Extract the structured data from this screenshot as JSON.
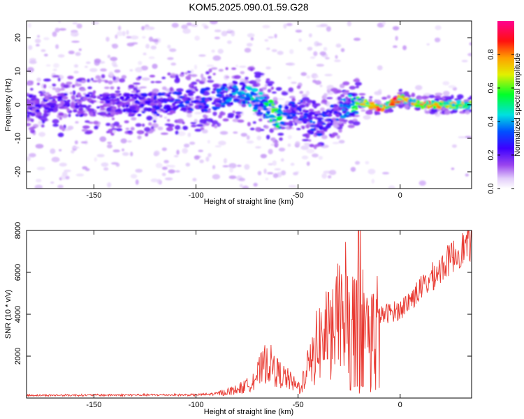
{
  "title": "KOM5.2025.090.01.59.G28",
  "chart_data": [
    {
      "type": "heatmap",
      "xlabel": "Height of straight line (km)",
      "ylabel": "Frequency (Hz)",
      "xlim": [
        -183,
        35
      ],
      "ylim": [
        -25,
        25
      ],
      "x_ticks": [
        -150,
        -100,
        -50,
        0
      ],
      "y_ticks": [
        -20,
        -10,
        0,
        10,
        20
      ],
      "colorbar": {
        "label": "Normalized spectral amplitude",
        "range": [
          0,
          1
        ],
        "ticks": [
          0.0,
          0.2,
          0.4,
          0.6,
          0.8
        ],
        "colormap": "rainbow (white-violet-blue-cyan-green-yellow-red-magenta)"
      },
      "ridge": {
        "x": [
          -183,
          -160,
          -140,
          -120,
          -100,
          -90,
          -80,
          -70,
          -65,
          -60,
          -55,
          -50,
          -45,
          -40,
          -35,
          -30,
          -25,
          -20,
          -15,
          -10,
          -5,
          0,
          5,
          10,
          20,
          35
        ],
        "y": [
          0,
          0,
          0,
          0,
          1,
          2,
          4,
          1,
          -1,
          -4,
          -3,
          0,
          -5,
          -6,
          -4,
          -1,
          0,
          1,
          0,
          -1,
          0,
          2,
          1,
          0,
          0,
          0
        ],
        "amplitude": [
          0.2,
          0.2,
          0.2,
          0.25,
          0.3,
          0.3,
          0.4,
          0.45,
          0.5,
          0.55,
          0.3,
          0.25,
          0.3,
          0.3,
          0.25,
          0.3,
          0.4,
          0.6,
          0.75,
          0.8,
          0.7,
          0.85,
          0.7,
          0.75,
          0.7,
          0.6
        ]
      }
    },
    {
      "type": "line",
      "xlabel": "Height of straight line (km)",
      "ylabel": "SNR (10 * v/v)",
      "xlim": [
        -183,
        35
      ],
      "ylim": [
        0,
        8000
      ],
      "x_ticks": [
        -150,
        -100,
        -50,
        0
      ],
      "y_ticks": [
        2000,
        4000,
        6000,
        8000
      ],
      "series": [
        {
          "color": "#e8372f",
          "x": [
            -183,
            -150,
            -120,
            -100,
            -90,
            -80,
            -75,
            -70,
            -65,
            -60,
            -55,
            -50,
            -47,
            -44,
            -40,
            -35,
            -30,
            -27,
            -25,
            -22,
            -20,
            -18,
            -15,
            -12,
            -10,
            -5,
            0,
            5,
            10,
            15,
            20,
            25,
            30,
            35
          ],
          "y": [
            130,
            140,
            150,
            150,
            200,
            400,
            600,
            1100,
            1800,
            1200,
            900,
            500,
            900,
            1500,
            2700,
            3000,
            3800,
            3400,
            3300,
            3500,
            4200,
            3600,
            3200,
            3200,
            3900,
            4100,
            4200,
            4700,
            5200,
            5700,
            6200,
            6700,
            7100,
            7400
          ]
        }
      ]
    }
  ]
}
